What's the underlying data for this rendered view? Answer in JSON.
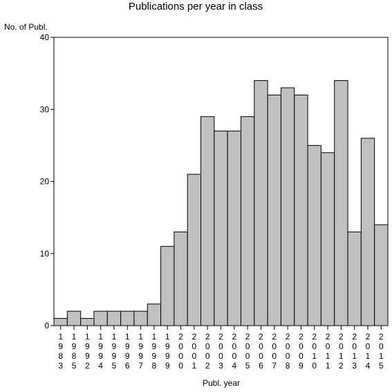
{
  "chart_data": {
    "type": "bar",
    "title": "Publications per year in class",
    "xlabel": "Publ. year",
    "ylabel": "No. of Publ.",
    "ylim": [
      0,
      40
    ],
    "yticks": [
      0,
      10,
      20,
      30,
      40
    ],
    "grid": false,
    "categories": [
      "1983",
      "1985",
      "1992",
      "1994",
      "1995",
      "1996",
      "1997",
      "1998",
      "1999",
      "2000",
      "2001",
      "2002",
      "2003",
      "2004",
      "2005",
      "2006",
      "2007",
      "2008",
      "2009",
      "2010",
      "2011",
      "2012",
      "2013",
      "2014",
      "2015"
    ],
    "values": [
      1,
      2,
      1,
      2,
      2,
      2,
      2,
      3,
      11,
      13,
      21,
      29,
      27,
      27,
      29,
      34,
      32,
      33,
      32,
      25,
      24,
      34,
      13,
      26,
      14
    ],
    "bar_color": "#c0c0c0"
  }
}
